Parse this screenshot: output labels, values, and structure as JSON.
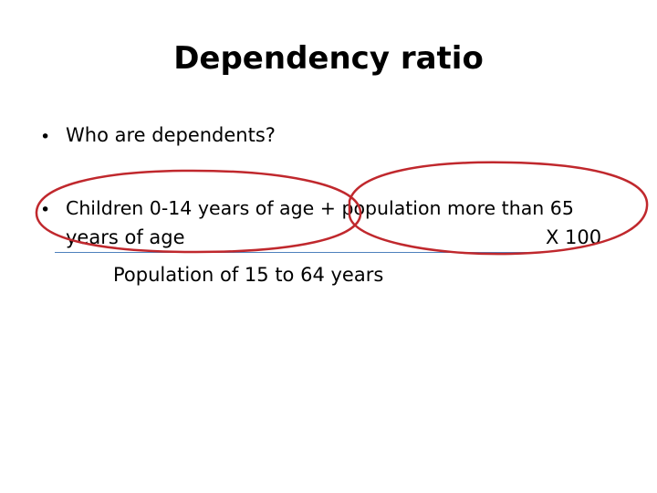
{
  "slide": {
    "title": "Dependency ratio",
    "bullets": [
      {
        "marker": "•",
        "text": "Who are dependents?"
      },
      {
        "marker": "•",
        "text": "Children 0-14 years of age + population more than 65"
      }
    ],
    "formula": {
      "numerator_continuation": "years of age",
      "multiplier": "X 100",
      "denominator": "Population of 15 to 64 years"
    },
    "annotation_color": "#c0282d",
    "fraction_bar_color": "#4f81bd"
  }
}
